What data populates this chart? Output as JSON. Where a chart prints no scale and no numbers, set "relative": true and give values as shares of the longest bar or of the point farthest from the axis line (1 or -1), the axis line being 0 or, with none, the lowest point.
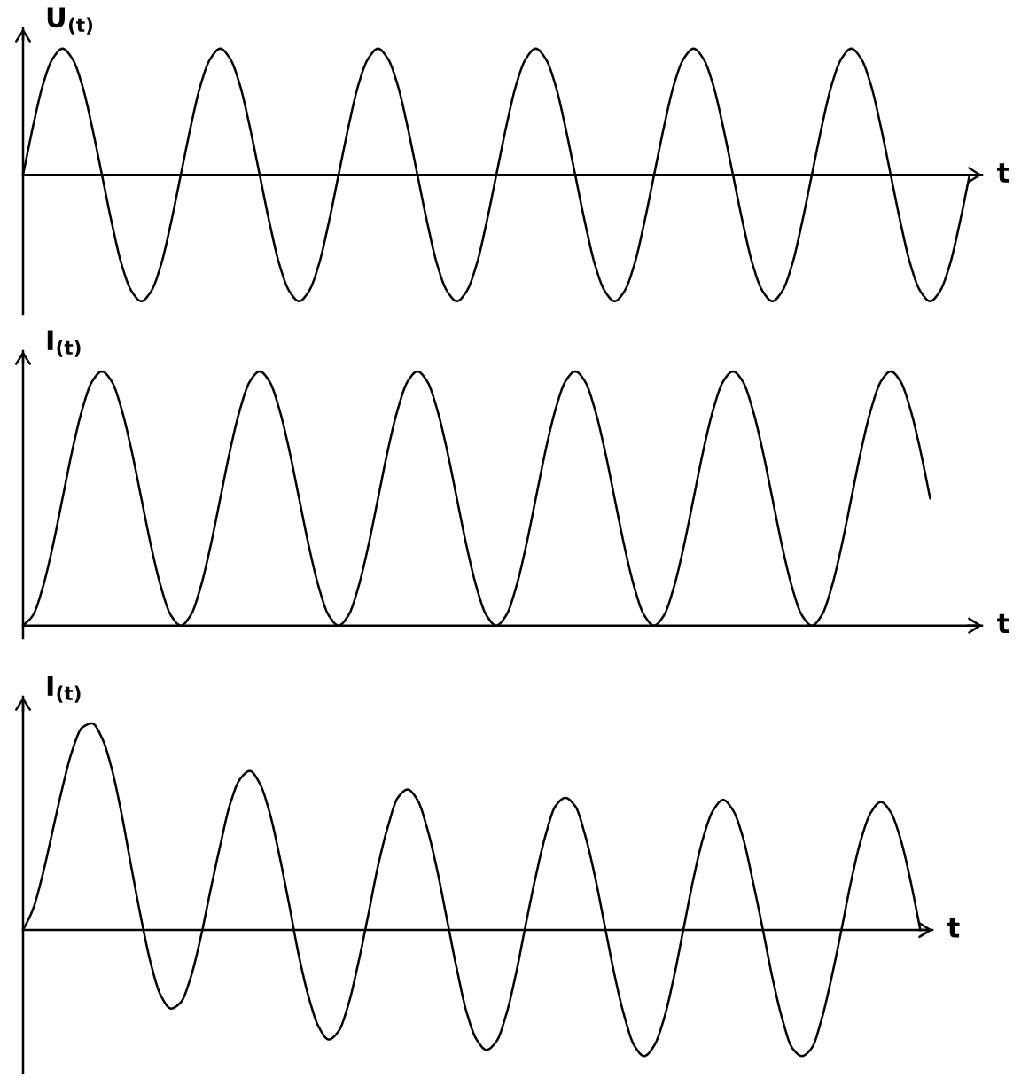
{
  "chart_data": [
    {
      "type": "line",
      "relative": true,
      "xlabel": "t",
      "ylabel": "U$_{(t)}$",
      "color": "#000000",
      "categories": [
        null,
        null,
        null,
        null,
        null,
        null,
        null,
        null,
        null,
        null,
        null,
        null,
        null,
        null,
        null,
        null,
        null,
        null,
        null,
        null,
        null,
        null,
        null,
        null,
        null,
        null,
        null,
        null,
        null,
        null,
        null,
        null,
        null,
        null,
        null,
        null,
        null,
        null,
        null,
        null,
        null,
        null,
        null,
        null,
        null,
        null,
        null,
        null,
        null,
        null,
        null,
        null,
        null,
        null,
        null,
        null,
        null,
        null,
        null,
        null,
        null,
        null,
        null,
        null,
        null,
        null,
        null,
        null,
        null,
        null,
        null,
        null,
        null,
        null,
        null,
        null,
        null,
        null,
        null,
        null,
        null,
        null,
        null,
        null,
        null,
        null,
        null,
        null,
        null,
        null,
        null,
        null,
        null,
        null,
        null,
        null,
        null
      ],
      "values": [
        0,
        0.38,
        0.71,
        0.92,
        1,
        0.92,
        0.71,
        0.38,
        0,
        -0.38,
        -0.71,
        -0.92,
        -1,
        -0.92,
        -0.71,
        -0.38,
        0,
        0.38,
        0.71,
        0.92,
        1,
        0.92,
        0.71,
        0.38,
        0,
        -0.38,
        -0.71,
        -0.92,
        -1,
        -0.92,
        -0.71,
        -0.38,
        0,
        0.38,
        0.71,
        0.92,
        1,
        0.92,
        0.71,
        0.38,
        0,
        -0.38,
        -0.71,
        -0.92,
        -1,
        -0.92,
        -0.71,
        -0.38,
        0,
        0.38,
        0.71,
        0.92,
        1,
        0.92,
        0.71,
        0.38,
        0,
        -0.38,
        -0.71,
        -0.92,
        -1,
        -0.92,
        -0.71,
        -0.38,
        0,
        0.38,
        0.71,
        0.92,
        1,
        0.92,
        0.71,
        0.38,
        0,
        -0.38,
        -0.71,
        -0.92,
        -1,
        -0.92,
        -0.71,
        -0.38,
        0,
        0.38,
        0.71,
        0.92,
        1,
        0.92,
        0.71,
        0.38,
        0,
        -0.38,
        -0.71,
        -0.92,
        -1,
        -0.92,
        -0.71,
        -0.38,
        0
      ]
    },
    {
      "type": "line",
      "relative": true,
      "xlabel": "t",
      "ylabel": "I$_{(t)}$",
      "color": "#000000",
      "categories": [
        null,
        null,
        null,
        null,
        null,
        null,
        null,
        null,
        null,
        null,
        null,
        null,
        null,
        null,
        null,
        null,
        null,
        null,
        null,
        null,
        null,
        null,
        null,
        null,
        null,
        null,
        null,
        null,
        null,
        null,
        null,
        null,
        null,
        null,
        null,
        null,
        null,
        null,
        null,
        null,
        null,
        null,
        null,
        null,
        null,
        null,
        null,
        null,
        null,
        null,
        null,
        null,
        null,
        null,
        null,
        null,
        null,
        null,
        null,
        null,
        null,
        null,
        null,
        null,
        null,
        null,
        null,
        null,
        null,
        null,
        null,
        null,
        null,
        null,
        null,
        null,
        null,
        null,
        null,
        null,
        null,
        null,
        null,
        null,
        null,
        null,
        null,
        null,
        null,
        null,
        null,
        null,
        null
      ],
      "values": [
        0,
        0.04,
        0.15,
        0.31,
        0.5,
        0.69,
        0.85,
        0.96,
        1,
        0.96,
        0.85,
        0.69,
        0.5,
        0.31,
        0.15,
        0.04,
        0,
        0.04,
        0.15,
        0.31,
        0.5,
        0.69,
        0.85,
        0.96,
        1,
        0.96,
        0.85,
        0.69,
        0.5,
        0.31,
        0.15,
        0.04,
        0,
        0.04,
        0.15,
        0.31,
        0.5,
        0.69,
        0.85,
        0.96,
        1,
        0.96,
        0.85,
        0.69,
        0.5,
        0.31,
        0.15,
        0.04,
        0,
        0.04,
        0.15,
        0.31,
        0.5,
        0.69,
        0.85,
        0.96,
        1,
        0.96,
        0.85,
        0.69,
        0.5,
        0.31,
        0.15,
        0.04,
        0,
        0.04,
        0.15,
        0.31,
        0.5,
        0.69,
        0.85,
        0.96,
        1,
        0.96,
        0.85,
        0.69,
        0.5,
        0.31,
        0.15,
        0.04,
        0,
        0.04,
        0.15,
        0.31,
        0.5,
        0.69,
        0.85,
        0.96,
        1,
        0.96,
        0.85,
        0.69,
        0.5
      ]
    },
    {
      "type": "line",
      "relative": true,
      "xlabel": "t",
      "ylabel": "I$_{(t)}$",
      "color": "#000000",
      "categories": [
        null,
        null,
        null,
        null,
        null,
        null,
        null,
        null,
        null,
        null,
        null,
        null,
        null,
        null,
        null,
        null,
        null,
        null,
        null,
        null,
        null,
        null,
        null,
        null,
        null,
        null,
        null,
        null,
        null,
        null,
        null,
        null,
        null,
        null,
        null,
        null,
        null,
        null,
        null,
        null,
        null,
        null,
        null,
        null,
        null,
        null,
        null,
        null,
        null,
        null,
        null,
        null,
        null,
        null,
        null,
        null,
        null,
        null,
        null,
        null,
        null,
        null,
        null,
        null,
        null,
        null,
        null,
        null,
        null,
        null,
        null,
        null,
        null,
        null,
        null,
        null,
        null,
        null,
        null,
        null,
        null,
        null,
        null,
        null,
        null,
        null,
        null,
        null,
        null,
        null,
        null,
        null
      ],
      "values": [
        0,
        0.1,
        0.27,
        0.48,
        0.69,
        0.87,
        0.98,
        1,
        0.93,
        0.78,
        0.56,
        0.3,
        0.05,
        -0.17,
        -0.32,
        -0.38,
        -0.35,
        -0.23,
        -0.04,
        0.19,
        0.41,
        0.61,
        0.73,
        0.77,
        0.71,
        0.57,
        0.36,
        0.12,
        -0.13,
        -0.33,
        -0.47,
        -0.53,
        -0.49,
        -0.36,
        -0.16,
        0.07,
        0.31,
        0.5,
        0.64,
        0.68,
        0.63,
        0.49,
        0.29,
        0.05,
        -0.19,
        -0.4,
        -0.53,
        -0.58,
        -0.54,
        -0.41,
        -0.21,
        0.03,
        0.26,
        0.46,
        0.6,
        0.64,
        0.6,
        0.46,
        0.26,
        0.02,
        -0.22,
        -0.42,
        -0.56,
        -0.61,
        -0.56,
        -0.43,
        -0.23,
        0.01,
        0.25,
        0.45,
        0.58,
        0.63,
        0.58,
        0.45,
        0.24,
        0.01,
        -0.23,
        -0.43,
        -0.57,
        -0.61,
        -0.57,
        -0.43,
        -0.23,
        0,
        0.24,
        0.44,
        0.57,
        0.62,
        0.57,
        0.44,
        0.24,
        0
      ]
    }
  ]
}
